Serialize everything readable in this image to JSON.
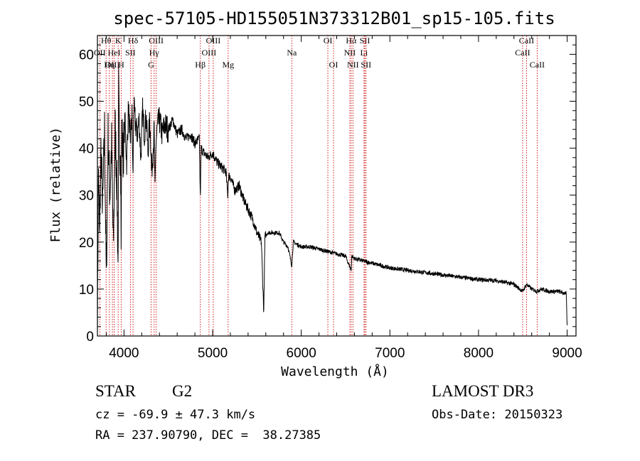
{
  "chart_data": {
    "type": "line",
    "title": "spec-57105-HD155051N373312B01_sp15-105.fits",
    "xlabel": "Wavelength (Å)",
    "ylabel": "Flux (relative)",
    "xlim": [
      3700,
      9100
    ],
    "ylim": [
      0,
      64
    ],
    "x_ticks": [
      4000,
      5000,
      6000,
      7000,
      8000,
      9000
    ],
    "y_ticks": [
      0,
      10,
      20,
      30,
      40,
      50,
      60
    ],
    "grid": false,
    "line_color": "#000000",
    "marker_color": "#cc0000",
    "series": [
      {
        "name": "flux",
        "x": [
          3700,
          3712,
          3725,
          3740,
          3760,
          3780,
          3800,
          3820,
          3840,
          3860,
          3880,
          3900,
          3920,
          3933,
          3940,
          3950,
          3960,
          3968,
          3975,
          3990,
          4010,
          4030,
          4050,
          4070,
          4090,
          4101,
          4110,
          4130,
          4150,
          4170,
          4190,
          4210,
          4230,
          4250,
          4270,
          4290,
          4305,
          4310,
          4320,
          4340,
          4350,
          4360,
          4380,
          4400,
          4430,
          4460,
          4500,
          4550,
          4600,
          4650,
          4700,
          4750,
          4800,
          4850,
          4861,
          4870,
          4900,
          4950,
          5000,
          5050,
          5100,
          5150,
          5170,
          5180,
          5200,
          5250,
          5300,
          5350,
          5400,
          5450,
          5500,
          5550,
          5577,
          5590,
          5620,
          5650,
          5700,
          5750,
          5800,
          5850,
          5893,
          5910,
          6000,
          6100,
          6200,
          6300,
          6400,
          6500,
          6563,
          6570,
          6600,
          6700,
          6800,
          6900,
          7000,
          7200,
          7400,
          7600,
          7800,
          8000,
          8200,
          8400,
          8498,
          8542,
          8600,
          8662,
          8700,
          8800,
          8900,
          8990,
          9000
        ],
        "y": [
          2,
          36,
          20,
          40,
          27,
          44,
          12,
          43,
          30,
          41,
          18,
          45,
          32,
          14,
          53,
          36,
          43,
          20,
          44,
          38,
          46,
          37,
          49,
          41,
          47,
          33,
          49,
          45,
          43,
          46,
          38,
          48,
          43,
          47,
          39,
          46,
          40,
          35,
          37,
          44,
          30,
          41,
          45,
          46,
          43,
          45,
          44,
          46,
          43,
          44,
          42,
          43,
          41,
          42,
          29,
          40,
          39,
          38,
          39,
          37,
          36,
          35,
          30,
          34,
          34,
          31,
          32,
          29,
          27,
          25,
          22,
          20,
          5,
          21,
          22,
          22,
          22,
          22,
          20,
          19,
          15,
          20,
          19,
          19,
          18.5,
          18,
          17.5,
          17,
          14,
          17,
          16.5,
          16,
          15.5,
          15,
          14.5,
          14,
          13.5,
          13,
          12.5,
          12,
          11.8,
          11,
          9.5,
          11,
          10,
          9.5,
          10,
          9.5,
          9.5,
          9,
          2
        ]
      }
    ],
    "lines_marked": [
      {
        "label": "Hθ",
        "x": 3798,
        "row": 1
      },
      {
        "label": "OII",
        "x": 3727,
        "row": 2
      },
      {
        "label": "OIII",
        "x": 3869,
        "row": 3
      },
      {
        "label": "K",
        "x": 3934,
        "row": 1
      },
      {
        "label": "HeI",
        "x": 3889,
        "row": 2
      },
      {
        "label": "Hη",
        "x": 3835,
        "row": 3
      },
      {
        "label": "H",
        "x": 3968,
        "row": 3
      },
      {
        "label": "Hδ",
        "x": 4102,
        "row": 1
      },
      {
        "label": "SII",
        "x": 4072,
        "row": 2
      },
      {
        "label": "OIII",
        "x": 4363,
        "row": 1
      },
      {
        "label": "Hγ",
        "x": 4340,
        "row": 2
      },
      {
        "label": "G",
        "x": 4305,
        "row": 3
      },
      {
        "label": "Hβ",
        "x": 4861,
        "row": 3
      },
      {
        "label": "OIII",
        "x": 5007,
        "row": 1
      },
      {
        "label": "OIII",
        "x": 4959,
        "row": 2
      },
      {
        "label": "Mg",
        "x": 5175,
        "row": 3
      },
      {
        "label": "Na",
        "x": 5893,
        "row": 2
      },
      {
        "label": "OI",
        "x": 6300,
        "row": 1
      },
      {
        "label": "OI",
        "x": 6364,
        "row": 3
      },
      {
        "label": "Hα",
        "x": 6563,
        "row": 1
      },
      {
        "label": "NII",
        "x": 6548,
        "row": 2
      },
      {
        "label": "NII",
        "x": 6583,
        "row": 3
      },
      {
        "label": "SII",
        "x": 6717,
        "row": 1
      },
      {
        "label": "Li",
        "x": 6708,
        "row": 2
      },
      {
        "label": "SII",
        "x": 6731,
        "row": 3
      },
      {
        "label": "CaII",
        "x": 8542,
        "row": 1
      },
      {
        "label": "CaII",
        "x": 8498,
        "row": 2
      },
      {
        "label": "CaII",
        "x": 8662,
        "row": 3
      }
    ]
  },
  "info": {
    "class_label": "STAR",
    "subclass": "G2",
    "redshift": "cz = -69.9 ± 47.3 km/s",
    "coords": "RA = 237.90790, DEC =  38.27385",
    "survey": "LAMOST DR3",
    "obs_date": "Obs-Date: 20150323"
  }
}
